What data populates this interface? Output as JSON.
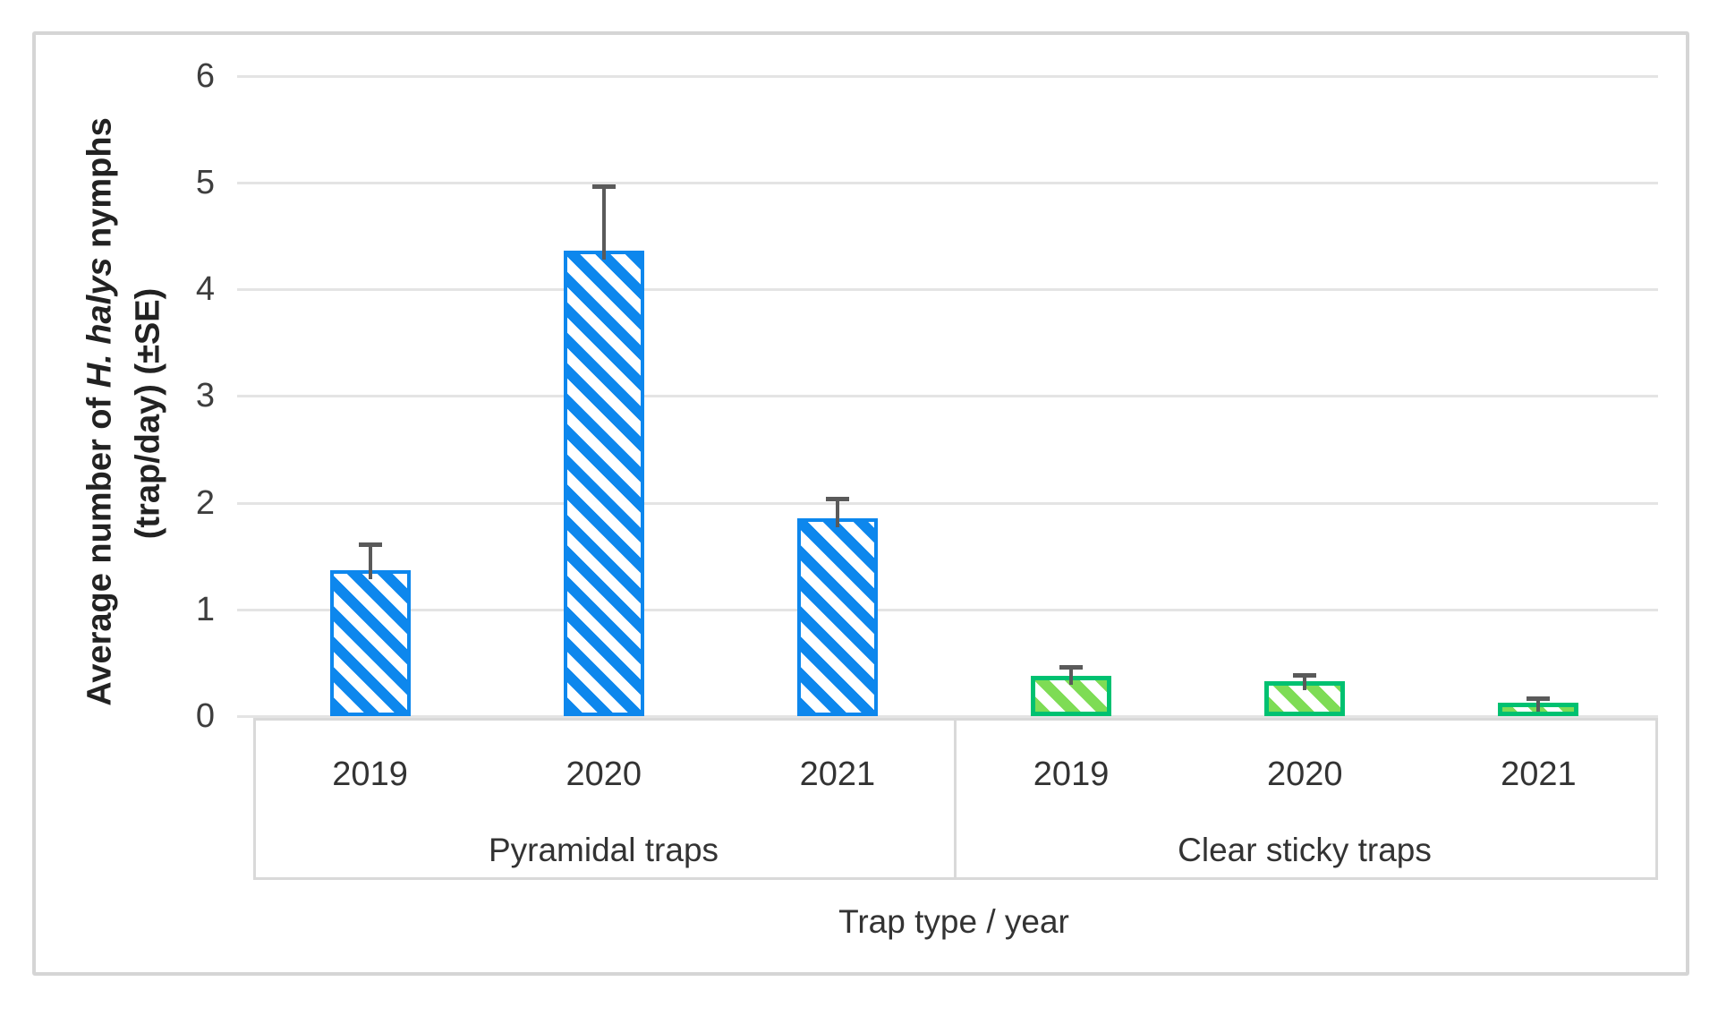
{
  "figure": {
    "background": "#ffffff",
    "border_color": "#d5d5d5"
  },
  "chart_data": {
    "type": "bar",
    "title": "",
    "y_axis": {
      "label_segments": [
        {
          "text": "Average number of ",
          "italic": false
        },
        {
          "text": "H. halys",
          "italic": true
        },
        {
          "text": " nymphs",
          "italic": false
        }
      ],
      "label_line2": "(trap/day) (±SE)",
      "min": 0,
      "max": 6,
      "tick_step": 1,
      "ticks": [
        0,
        1,
        2,
        3,
        4,
        5,
        6
      ],
      "gridlines": true
    },
    "x_axis": {
      "title": "Trap type / year",
      "groups": [
        {
          "label": "Pyramidal traps",
          "years": [
            "2019",
            "2020",
            "2021"
          ]
        },
        {
          "label": "Clear sticky traps",
          "years": [
            "2019",
            "2020",
            "2021"
          ]
        }
      ]
    },
    "series": [
      {
        "name": "Pyramidal traps",
        "categories": [
          "2019",
          "2020",
          "2021"
        ],
        "values": [
          1.37,
          4.36,
          1.85
        ],
        "se": [
          0.24,
          0.61,
          0.19
        ],
        "bar_color": "#0d87ed",
        "hatch_fill": "#0d87ed",
        "hatch": "diagonal-45"
      },
      {
        "name": "Clear sticky traps",
        "categories": [
          "2019",
          "2020",
          "2021"
        ],
        "values": [
          0.38,
          0.33,
          0.13
        ],
        "se": [
          0.08,
          0.06,
          0.04
        ],
        "bar_color": "#00c171",
        "hatch_fill": "#7edc55",
        "hatch": "diagonal-45"
      }
    ],
    "error_bars": {
      "direction": "plus",
      "color": "#5a5a5a"
    },
    "colors": {
      "gridline": "#e4e4e4",
      "axis_table": "#d9d9d9",
      "text": "#333333"
    },
    "legend": "none"
  }
}
